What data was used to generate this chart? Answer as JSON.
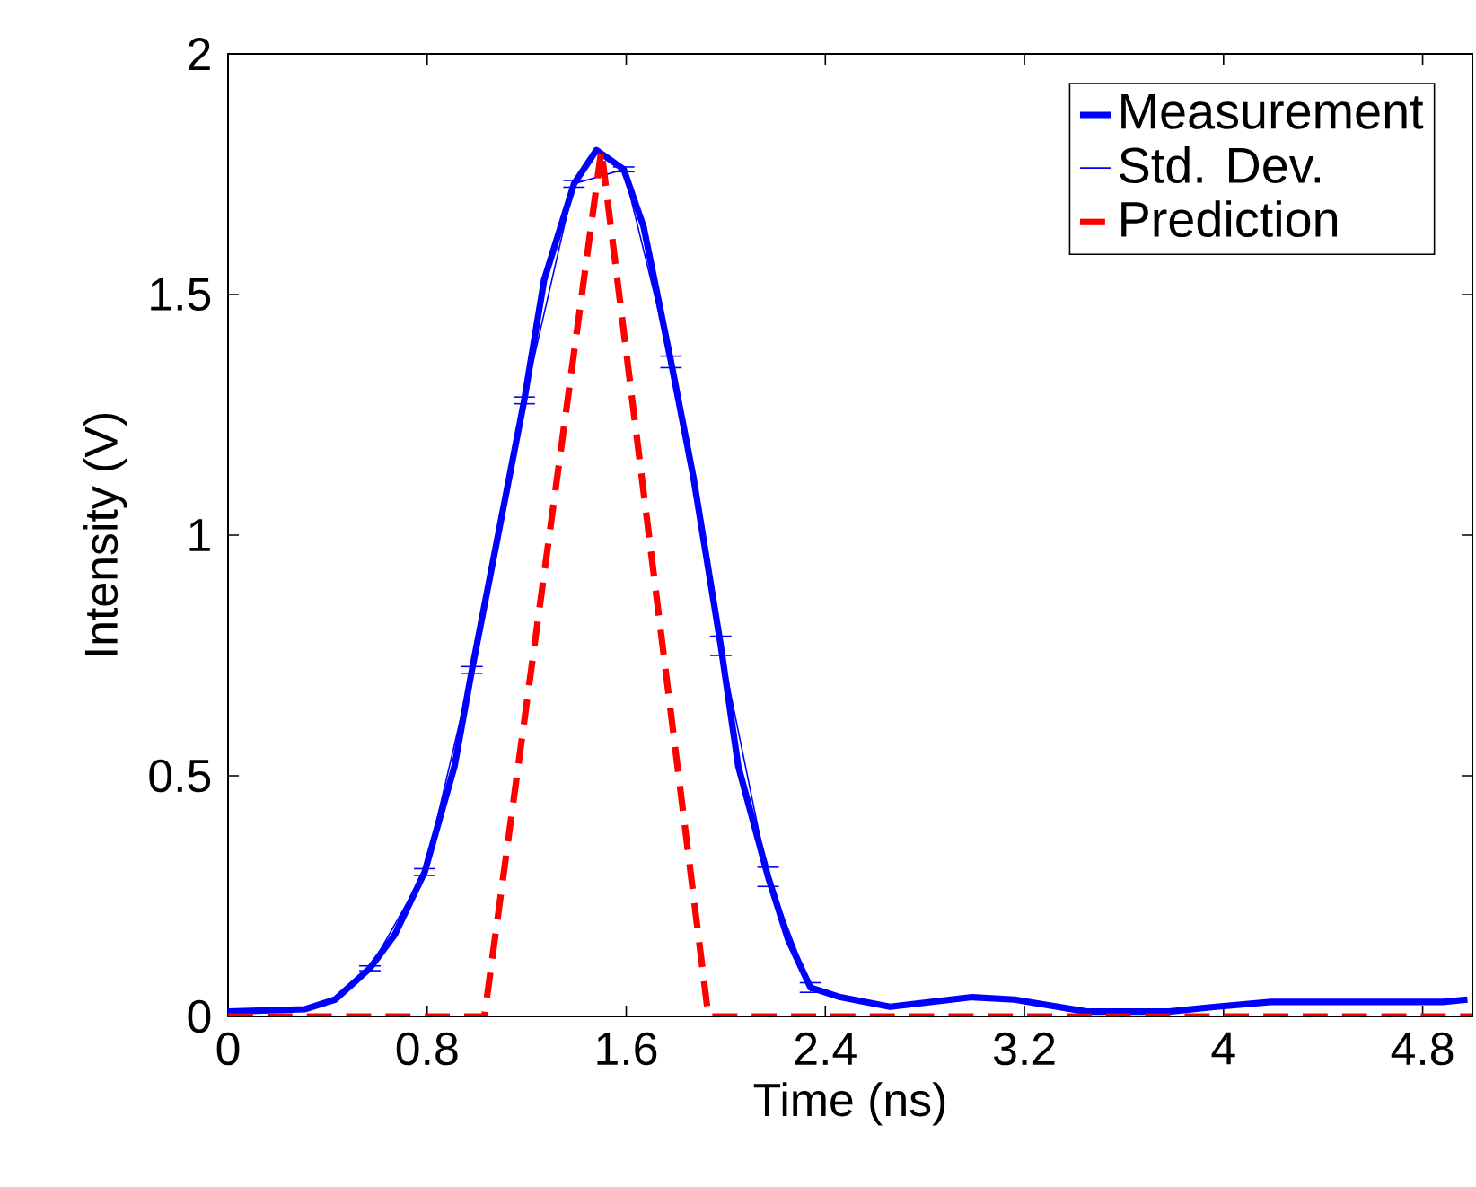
{
  "chart_data": {
    "type": "line",
    "xlabel": "Time (ns)",
    "ylabel": "Intensity (V)",
    "xlim": [
      0,
      5
    ],
    "ylim": [
      0,
      2
    ],
    "xticks": [
      0,
      0.8,
      1.6,
      2.4,
      3.2,
      4,
      4.8
    ],
    "yticks": [
      0,
      0.5,
      1,
      1.5,
      2
    ],
    "grid": false,
    "legend": "top right",
    "marker": "none",
    "series": [
      {
        "name": "Measurement",
        "color": "#0000ff",
        "line_style": "solid",
        "x": [
          0,
          0.31,
          0.43,
          0.57,
          0.67,
          0.79,
          0.91,
          0.98,
          1.1,
          1.19,
          1.27,
          1.39,
          1.48,
          1.59,
          1.67,
          1.78,
          1.87,
          1.98,
          2.05,
          2.17,
          2.25,
          2.34,
          2.46,
          2.66,
          2.99,
          3.16,
          3.45,
          3.78,
          3.97,
          4.19,
          4.88,
          4.98
        ],
        "values": [
          0.01,
          0.015,
          0.035,
          0.1,
          0.17,
          0.3,
          0.52,
          0.72,
          1.04,
          1.28,
          1.53,
          1.73,
          1.8,
          1.76,
          1.64,
          1.36,
          1.12,
          0.77,
          0.52,
          0.29,
          0.16,
          0.06,
          0.04,
          0.02,
          0.04,
          0.035,
          0.01,
          0.01,
          0.02,
          0.03,
          0.03,
          0.035
        ]
      },
      {
        "name": "Std. Dev.",
        "color": "#0000ff",
        "line_style": "solid",
        "x": [
          0.57,
          0.79,
          0.98,
          1.19,
          1.39,
          1.59,
          1.78,
          1.98,
          2.17,
          2.34
        ],
        "values": [
          0.1,
          0.3,
          0.72,
          1.28,
          1.73,
          1.76,
          1.36,
          0.77,
          0.29,
          0.06
        ],
        "errors": [
          0.005,
          0.007,
          0.007,
          0.007,
          0.007,
          0.005,
          0.012,
          0.02,
          0.02,
          0.01
        ]
      },
      {
        "name": "Prediction",
        "color": "#ff0000",
        "line_style": "dashed",
        "x": [
          0,
          1.03,
          1.5,
          1.93,
          5
        ],
        "values": [
          0,
          0,
          1.8,
          0,
          0
        ]
      }
    ]
  }
}
